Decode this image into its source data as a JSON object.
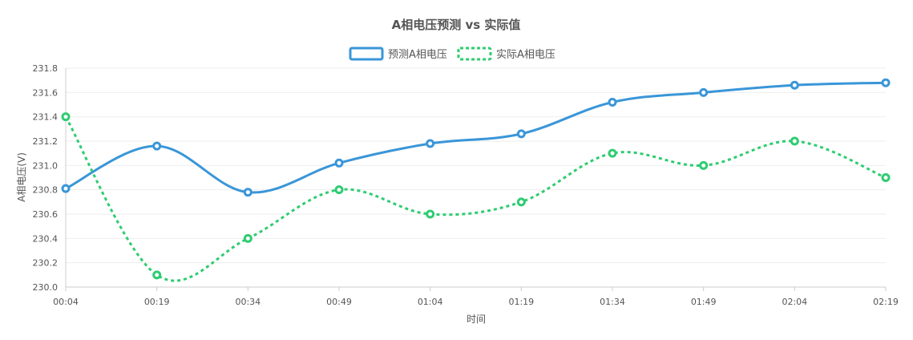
{
  "chart_data": {
    "type": "line",
    "title": "A相电压预测 vs 实际值",
    "xlabel": "时间",
    "ylabel": "A相电压(V)",
    "categories": [
      "00:04",
      "00:19",
      "00:34",
      "00:49",
      "01:04",
      "01:19",
      "01:34",
      "01:49",
      "02:04",
      "02:19"
    ],
    "ylim": [
      230.0,
      231.8
    ],
    "yticks": [
      "230.0",
      "230.2",
      "230.4",
      "230.6",
      "230.8",
      "231.0",
      "231.2",
      "231.4",
      "231.6",
      "231.8"
    ],
    "grid": true,
    "legend_position": "top-center",
    "series": [
      {
        "name": "预测A相电压",
        "color": "#3a96d8",
        "style": "solid",
        "values": [
          230.81,
          231.16,
          230.78,
          231.02,
          231.18,
          231.26,
          231.52,
          231.6,
          231.66,
          231.68
        ]
      },
      {
        "name": "实际A相电压",
        "color": "#2ecc71",
        "style": "dashed",
        "values": [
          231.4,
          230.1,
          230.4,
          230.8,
          230.6,
          230.7,
          231.1,
          231.0,
          231.2,
          230.9
        ]
      }
    ]
  }
}
